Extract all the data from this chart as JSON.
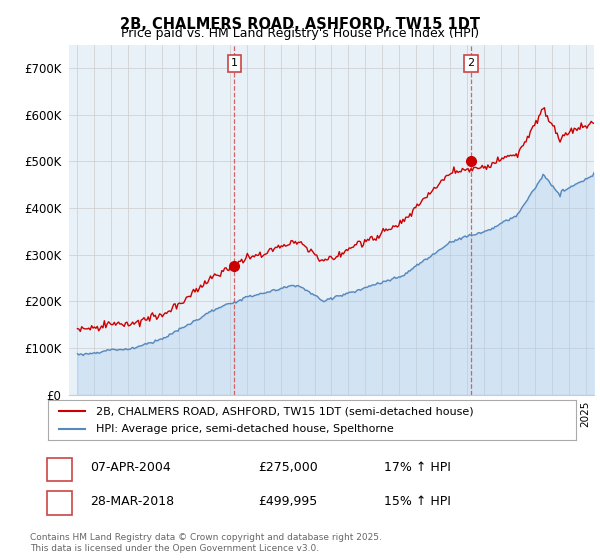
{
  "title": "2B, CHALMERS ROAD, ASHFORD, TW15 1DT",
  "subtitle": "Price paid vs. HM Land Registry's House Price Index (HPI)",
  "legend_label_red": "2B, CHALMERS ROAD, ASHFORD, TW15 1DT (semi-detached house)",
  "legend_label_blue": "HPI: Average price, semi-detached house, Spelthorne",
  "footer": "Contains HM Land Registry data © Crown copyright and database right 2025.\nThis data is licensed under the Open Government Licence v3.0.",
  "sale1_date": "07-APR-2004",
  "sale1_price": "£275,000",
  "sale1_hpi": "17% ↑ HPI",
  "sale2_date": "28-MAR-2018",
  "sale2_price": "£499,995",
  "sale2_hpi": "15% ↑ HPI",
  "sale1_x": 2004.27,
  "sale2_x": 2018.24,
  "sale1_y": 275000,
  "sale2_y": 499995,
  "ylim_min": 0,
  "ylim_max": 750000,
  "xlim_min": 1994.5,
  "xlim_max": 2025.5,
  "yticks": [
    0,
    100000,
    200000,
    300000,
    400000,
    500000,
    600000,
    700000
  ],
  "ytick_labels": [
    "£0",
    "£100K",
    "£200K",
    "£300K",
    "£400K",
    "£500K",
    "£600K",
    "£700K"
  ],
  "bg_color": "#ffffff",
  "plot_bg_color": "#e8f0f8",
  "red_color": "#cc0000",
  "blue_color": "#5588bb",
  "blue_fill_color": "#aaccee",
  "grid_color": "#cccccc",
  "vline_color": "#cc4444"
}
